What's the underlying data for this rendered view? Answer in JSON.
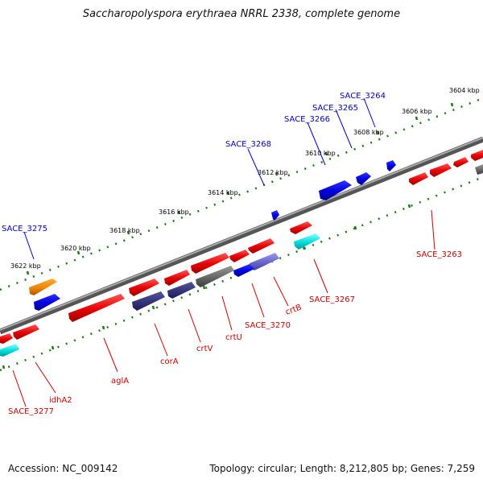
{
  "title": "Saccharopolyspora erythraea NRRL 2338, complete genome",
  "footer": {
    "accession": "Accession: NC_009142",
    "topology": "Topology: circular; Length: 8,212,805 bp; Genes: 7,259"
  },
  "scale_labels": [
    "3604 kbp",
    "3606 kbp",
    "3608 kbp",
    "3610 kbp",
    "3612 kbp",
    "3614 kbp",
    "3616 kbp",
    "3618 kbp",
    "3620 kbp",
    "3622 kbp"
  ],
  "gene_labels_top": [
    "SACE_3264",
    "SACE_3265",
    "SACE_3266",
    "SACE_3268",
    "SACE_3275"
  ],
  "gene_labels_bottom": [
    "SACE_3263",
    "SACE_3267",
    "crtB",
    "SACE_3270",
    "crtU",
    "crtV",
    "corA",
    "aglA",
    "idhA2",
    "SACE_3277"
  ],
  "colors": {
    "top_label": "#0000cc",
    "bottom_label": "#cc0000",
    "tick": "#1a7a1a",
    "backbone": "#808080",
    "red_gene": "#ee0000",
    "blue_gene": "#0000dd",
    "navy_gene": "#33337a",
    "gray_gene": "#666666",
    "cyan_gene": "#00dddd",
    "orange_gene": "#ee8800"
  }
}
